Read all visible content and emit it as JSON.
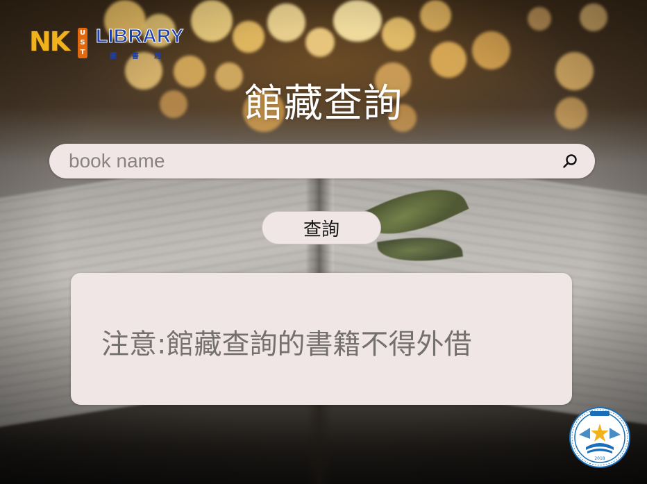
{
  "logo": {
    "nk": "NK",
    "ust": [
      "U",
      "S",
      "T"
    ],
    "library": "LIBRARY",
    "subtitle": "圖書館"
  },
  "page_title": "館藏查詢",
  "search": {
    "placeholder": "book name",
    "value": "",
    "icon": "search-icon"
  },
  "query_button_label": "查詢",
  "notice": "注意:館藏查詢的書籍不得外借",
  "seal": {
    "year": "2018",
    "icon": "university-seal"
  },
  "colors": {
    "panel_bg": "#f1e6e6",
    "title": "#ffffff",
    "notice_text": "#757070",
    "logo_gold": "#f2b21c",
    "logo_blue": "#1f3fa8",
    "seal_blue": "#1a6fb8"
  }
}
